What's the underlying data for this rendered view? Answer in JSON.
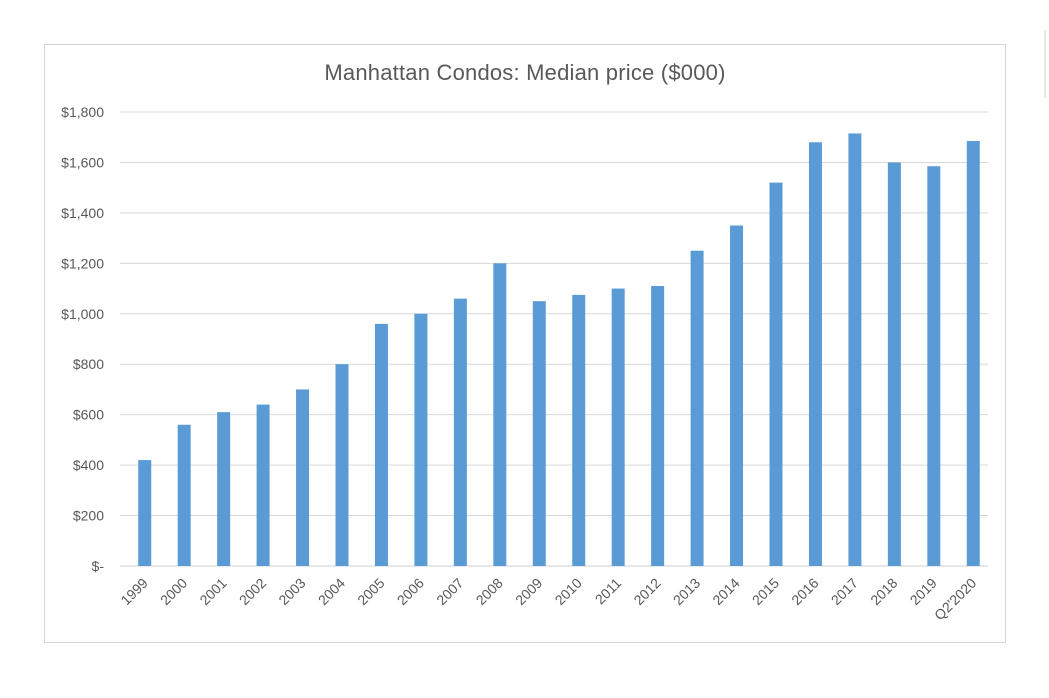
{
  "chart_data": {
    "type": "bar",
    "title": "Manhattan Condos:  Median price ($000)",
    "xlabel": "",
    "ylabel": "",
    "ylim": [
      0,
      1800
    ],
    "yticks": [
      0,
      200,
      400,
      600,
      800,
      1000,
      1200,
      1400,
      1600,
      1800
    ],
    "ytick_labels": [
      "$-",
      "$200",
      "$400",
      "$600",
      "$800",
      "$1,000",
      "$1,200",
      "$1,400",
      "$1,600",
      "$1,800"
    ],
    "grid": true,
    "legend": "none",
    "bar_color": "#5b9bd5",
    "categories": [
      "1999",
      "2000",
      "2001",
      "2002",
      "2003",
      "2004",
      "2005",
      "2006",
      "2007",
      "2008",
      "2009",
      "2010",
      "2011",
      "2012",
      "2013",
      "2014",
      "2015",
      "2016",
      "2017",
      "2018",
      "2019",
      "Q2'2020"
    ],
    "values": [
      420,
      560,
      610,
      640,
      700,
      800,
      960,
      1000,
      1060,
      1200,
      1050,
      1075,
      1100,
      1110,
      1250,
      1350,
      1520,
      1680,
      1715,
      1600,
      1585,
      1685
    ]
  }
}
